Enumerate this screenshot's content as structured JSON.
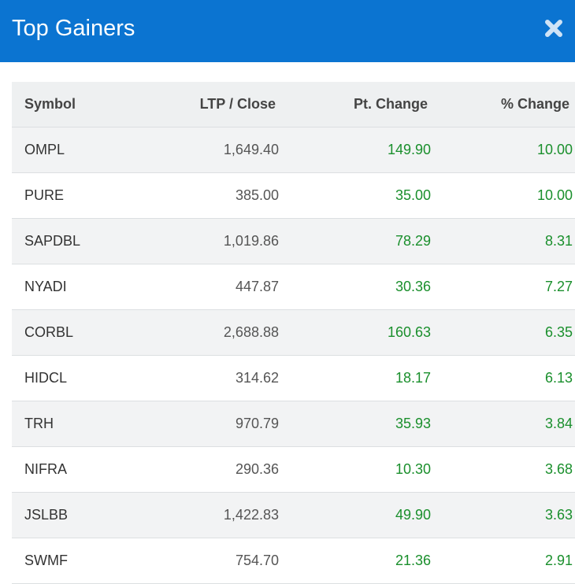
{
  "header": {
    "title": "Top Gainers",
    "close_icon": "close-icon"
  },
  "table": {
    "columns": [
      "Symbol",
      "LTP / Close",
      "Pt. Change",
      "% Change"
    ],
    "rows": [
      {
        "symbol": "OMPL",
        "ltp": "1,649.40",
        "pt_change": "149.90",
        "pct_change": "10.00"
      },
      {
        "symbol": "PURE",
        "ltp": "385.00",
        "pt_change": "35.00",
        "pct_change": "10.00"
      },
      {
        "symbol": "SAPDBL",
        "ltp": "1,019.86",
        "pt_change": "78.29",
        "pct_change": "8.31"
      },
      {
        "symbol": "NYADI",
        "ltp": "447.87",
        "pt_change": "30.36",
        "pct_change": "7.27"
      },
      {
        "symbol": "CORBL",
        "ltp": "2,688.88",
        "pt_change": "160.63",
        "pct_change": "6.35"
      },
      {
        "symbol": "HIDCL",
        "ltp": "314.62",
        "pt_change": "18.17",
        "pct_change": "6.13"
      },
      {
        "symbol": "TRH",
        "ltp": "970.79",
        "pt_change": "35.93",
        "pct_change": "3.84"
      },
      {
        "symbol": "NIFRA",
        "ltp": "290.36",
        "pt_change": "10.30",
        "pct_change": "3.68"
      },
      {
        "symbol": "JSLBB",
        "ltp": "1,422.83",
        "pt_change": "49.90",
        "pct_change": "3.63"
      },
      {
        "symbol": "SWMF",
        "ltp": "754.70",
        "pt_change": "21.36",
        "pct_change": "2.91"
      }
    ]
  },
  "colors": {
    "header_bg": "#0b74d1",
    "gain": "#1a8f2c",
    "stripe": "#f2f3f4"
  }
}
